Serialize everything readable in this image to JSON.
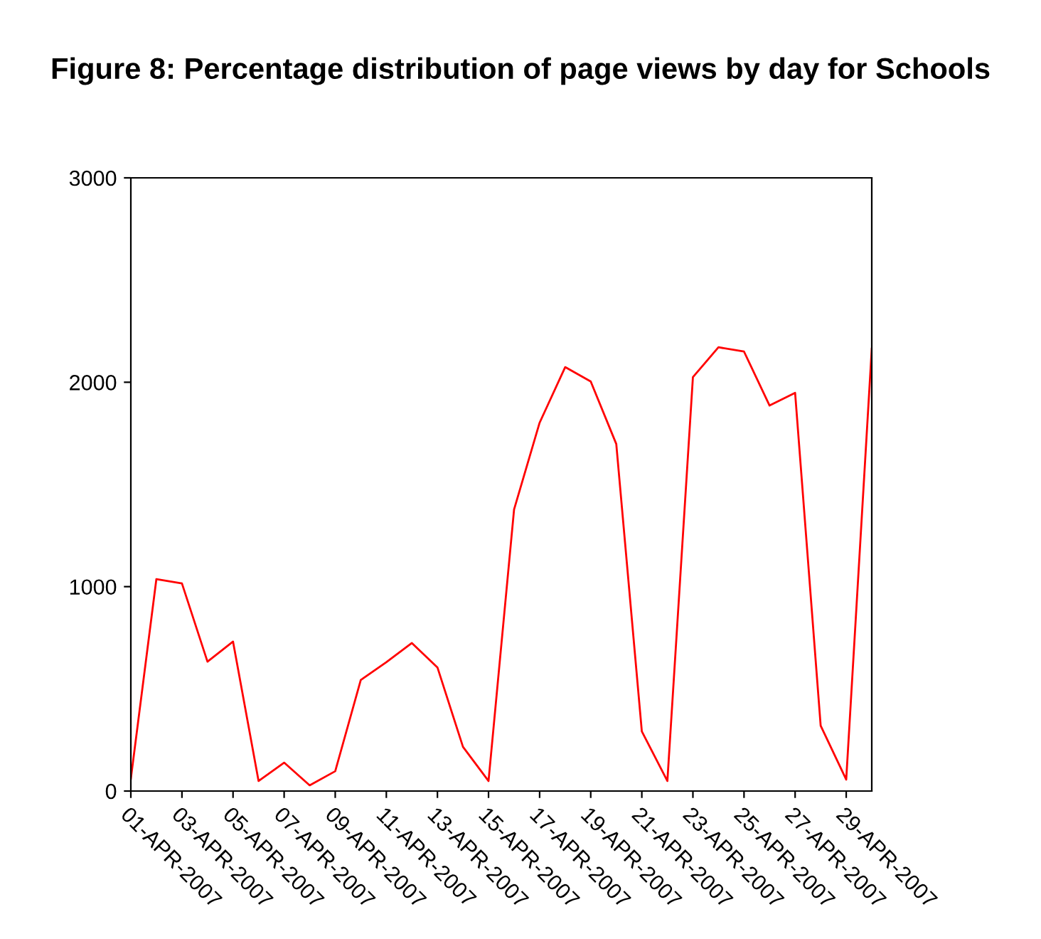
{
  "chart_data": {
    "type": "line",
    "title": "Figure 8: Percentage distribution of page views by day for Schools",
    "categories": [
      "01-APR-2007",
      null,
      "03-APR-2007",
      null,
      "05-APR-2007",
      null,
      "07-APR-2007",
      null,
      "09-APR-2007",
      null,
      "11-APR-2007",
      null,
      "13-APR-2007",
      null,
      "15-APR-2007",
      null,
      "17-APR-2007",
      null,
      "19-APR-2007",
      null,
      "21-APR-2007",
      null,
      "23-APR-2007",
      null,
      "25-APR-2007",
      null,
      "27-APR-2007",
      null,
      "29-APR-2007",
      null
    ],
    "series": [
      {
        "color": "#ff0000",
        "values": [
          60,
          1037,
          1016,
          633,
          731,
          49,
          139,
          28,
          97,
          543,
          630,
          724,
          605,
          216,
          49,
          1378,
          1802,
          2074,
          2004,
          1698,
          292,
          49,
          2025,
          2171,
          2150,
          1886,
          1948,
          320,
          56,
          2164
        ]
      }
    ],
    "ylim": [
      0,
      3000
    ],
    "yticks": [
      0,
      1000,
      2000,
      3000
    ],
    "grid": false,
    "marker": "none",
    "line_style": "solid"
  }
}
